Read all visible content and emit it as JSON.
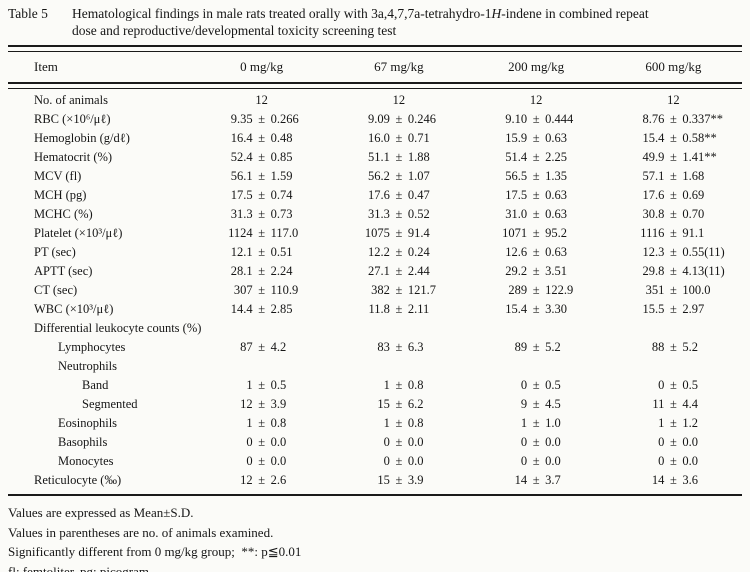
{
  "caption": {
    "tag": "Table 5",
    "line1_pre": "Hematological findings in male rats treated orally with 3a,4,7,7a-tetrahydro-1",
    "italic_part": "H",
    "line1_post": "-indene in combined repeat",
    "line2": "dose and reproductive/developmental toxicity screening test"
  },
  "table": {
    "columns": [
      "Item",
      "0 mg/kg",
      "67 mg/kg",
      "200 mg/kg",
      "600 mg/kg"
    ],
    "pm_symbol": "±",
    "rows": [
      {
        "label": "No. of animals",
        "indent": 0,
        "single": [
          "12",
          "12",
          "12",
          "12"
        ]
      },
      {
        "label": "RBC (×10⁶/μℓ)",
        "indent": 0,
        "values": [
          [
            "9.35",
            "0.266"
          ],
          [
            "9.09",
            "0.246"
          ],
          [
            "9.10",
            "0.444"
          ],
          [
            "8.76",
            "0.337**"
          ]
        ]
      },
      {
        "label": "Hemoglobin (g/dℓ)",
        "indent": 0,
        "values": [
          [
            "16.4",
            "0.48"
          ],
          [
            "16.0",
            "0.71"
          ],
          [
            "15.9",
            "0.63"
          ],
          [
            "15.4",
            "0.58**"
          ]
        ]
      },
      {
        "label": "Hematocrit (%)",
        "indent": 0,
        "values": [
          [
            "52.4",
            "0.85"
          ],
          [
            "51.1",
            "1.88"
          ],
          [
            "51.4",
            "2.25"
          ],
          [
            "49.9",
            "1.41**"
          ]
        ]
      },
      {
        "label": "MCV (fl)",
        "indent": 0,
        "values": [
          [
            "56.1",
            "1.59"
          ],
          [
            "56.2",
            "1.07"
          ],
          [
            "56.5",
            "1.35"
          ],
          [
            "57.1",
            "1.68"
          ]
        ]
      },
      {
        "label": "MCH (pg)",
        "indent": 0,
        "values": [
          [
            "17.5",
            "0.74"
          ],
          [
            "17.6",
            "0.47"
          ],
          [
            "17.5",
            "0.63"
          ],
          [
            "17.6",
            "0.69"
          ]
        ]
      },
      {
        "label": "MCHC (%)",
        "indent": 0,
        "values": [
          [
            "31.3",
            "0.73"
          ],
          [
            "31.3",
            "0.52"
          ],
          [
            "31.0",
            "0.63"
          ],
          [
            "30.8",
            "0.70"
          ]
        ]
      },
      {
        "label": "Platelet (×10³/μℓ)",
        "indent": 0,
        "values": [
          [
            "1124",
            "117.0"
          ],
          [
            "1075",
            "91.4"
          ],
          [
            "1071",
            "95.2"
          ],
          [
            "1116",
            "91.1"
          ]
        ]
      },
      {
        "label": "PT (sec)",
        "indent": 0,
        "values": [
          [
            "12.1",
            "0.51"
          ],
          [
            "12.2",
            "0.24"
          ],
          [
            "12.6",
            "0.63"
          ],
          [
            "12.3",
            "0.55(11)"
          ]
        ]
      },
      {
        "label": "APTT (sec)",
        "indent": 0,
        "values": [
          [
            "28.1",
            "2.24"
          ],
          [
            "27.1",
            "2.44"
          ],
          [
            "29.2",
            "3.51"
          ],
          [
            "29.8",
            "4.13(11)"
          ]
        ]
      },
      {
        "label": "CT (sec)",
        "indent": 0,
        "values": [
          [
            "307",
            "110.9"
          ],
          [
            "382",
            "121.7"
          ],
          [
            "289",
            "122.9"
          ],
          [
            "351",
            "100.0"
          ]
        ]
      },
      {
        "label": "WBC (×10³/μℓ)",
        "indent": 0,
        "values": [
          [
            "14.4",
            "2.85"
          ],
          [
            "11.8",
            "2.11"
          ],
          [
            "15.4",
            "3.30"
          ],
          [
            "15.5",
            "2.97"
          ]
        ]
      },
      {
        "label": "Differential leukocyte counts (%)",
        "indent": 0
      },
      {
        "label": "Lymphocytes",
        "indent": 1,
        "values": [
          [
            "87",
            "4.2"
          ],
          [
            "83",
            "6.3"
          ],
          [
            "89",
            "5.2"
          ],
          [
            "88",
            "5.2"
          ]
        ]
      },
      {
        "label": "Neutrophils",
        "indent": 1
      },
      {
        "label": "Band",
        "indent": 2,
        "values": [
          [
            "1",
            "0.5"
          ],
          [
            "1",
            "0.8"
          ],
          [
            "0",
            "0.5"
          ],
          [
            "0",
            "0.5"
          ]
        ]
      },
      {
        "label": "Segmented",
        "indent": 2,
        "values": [
          [
            "12",
            "3.9"
          ],
          [
            "15",
            "6.2"
          ],
          [
            "9",
            "4.5"
          ],
          [
            "11",
            "4.4"
          ]
        ]
      },
      {
        "label": "Eosinophils",
        "indent": 1,
        "values": [
          [
            "1",
            "0.8"
          ],
          [
            "1",
            "0.8"
          ],
          [
            "1",
            "1.0"
          ],
          [
            "1",
            "1.2"
          ]
        ]
      },
      {
        "label": "Basophils",
        "indent": 1,
        "values": [
          [
            "0",
            "0.0"
          ],
          [
            "0",
            "0.0"
          ],
          [
            "0",
            "0.0"
          ],
          [
            "0",
            "0.0"
          ]
        ]
      },
      {
        "label": "Monocytes",
        "indent": 1,
        "values": [
          [
            "0",
            "0.0"
          ],
          [
            "0",
            "0.0"
          ],
          [
            "0",
            "0.0"
          ],
          [
            "0",
            "0.0"
          ]
        ]
      },
      {
        "label": "Reticulocyte (‰)",
        "indent": 0,
        "values": [
          [
            "12",
            "2.6"
          ],
          [
            "15",
            "3.9"
          ],
          [
            "14",
            "3.7"
          ],
          [
            "14",
            "3.6"
          ]
        ]
      }
    ]
  },
  "footnotes": [
    "Values are expressed as Mean±S.D.",
    "Values in parentheses are no. of animals examined.",
    "Significantly different from 0 mg/kg group;  **: p≦0.01",
    "fl: femtoliter, pg: picogram."
  ],
  "colors": {
    "background": "#fbfbf8",
    "text": "#161616",
    "rule": "#1a1a1a"
  }
}
